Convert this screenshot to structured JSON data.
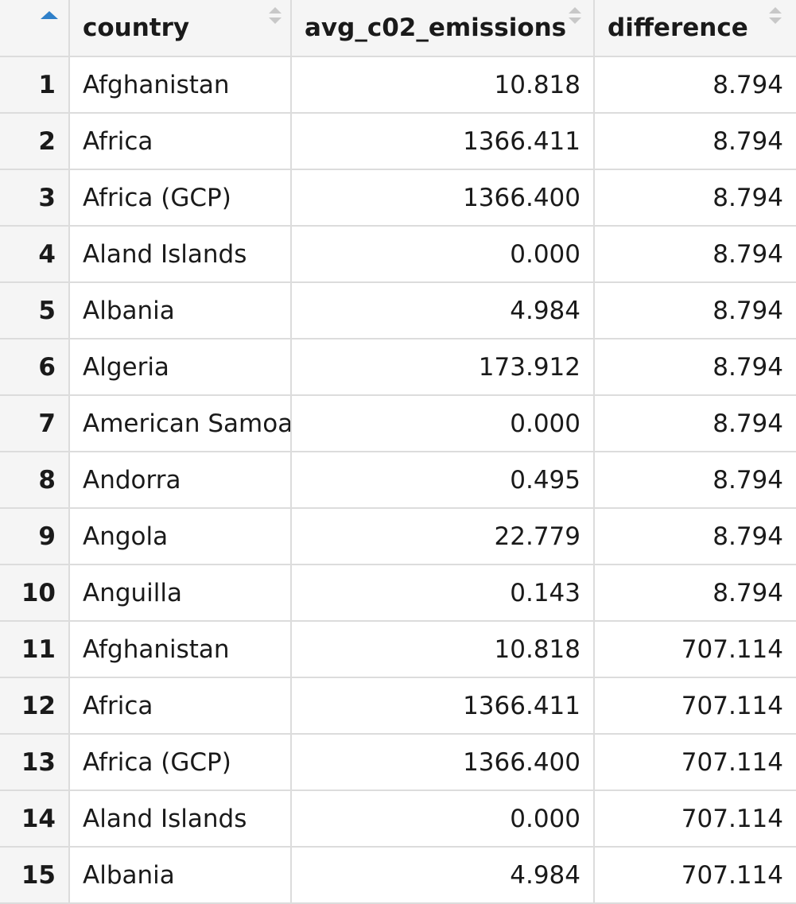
{
  "table": {
    "columns": [
      {
        "label": "country",
        "sort": "none"
      },
      {
        "label": "avg_c02_emissions",
        "sort": "none"
      },
      {
        "label": "difference",
        "sort": "none"
      }
    ],
    "index_sort": "ascending",
    "accent_color": "#2f80c9",
    "rows": [
      {
        "idx": "1",
        "country": "Afghanistan",
        "avg": "10.818",
        "diff": "8.794"
      },
      {
        "idx": "2",
        "country": "Africa",
        "avg": "1366.411",
        "diff": "8.794"
      },
      {
        "idx": "3",
        "country": "Africa (GCP)",
        "avg": "1366.400",
        "diff": "8.794"
      },
      {
        "idx": "4",
        "country": "Aland Islands",
        "avg": "0.000",
        "diff": "8.794"
      },
      {
        "idx": "5",
        "country": "Albania",
        "avg": "4.984",
        "diff": "8.794"
      },
      {
        "idx": "6",
        "country": "Algeria",
        "avg": "173.912",
        "diff": "8.794"
      },
      {
        "idx": "7",
        "country": "American Samoa",
        "avg": "0.000",
        "diff": "8.794"
      },
      {
        "idx": "8",
        "country": "Andorra",
        "avg": "0.495",
        "diff": "8.794"
      },
      {
        "idx": "9",
        "country": "Angola",
        "avg": "22.779",
        "diff": "8.794"
      },
      {
        "idx": "10",
        "country": "Anguilla",
        "avg": "0.143",
        "diff": "8.794"
      },
      {
        "idx": "11",
        "country": "Afghanistan",
        "avg": "10.818",
        "diff": "707.114"
      },
      {
        "idx": "12",
        "country": "Africa",
        "avg": "1366.411",
        "diff": "707.114"
      },
      {
        "idx": "13",
        "country": "Africa (GCP)",
        "avg": "1366.400",
        "diff": "707.114"
      },
      {
        "idx": "14",
        "country": "Aland Islands",
        "avg": "0.000",
        "diff": "707.114"
      },
      {
        "idx": "15",
        "country": "Albania",
        "avg": "4.984",
        "diff": "707.114"
      }
    ]
  }
}
